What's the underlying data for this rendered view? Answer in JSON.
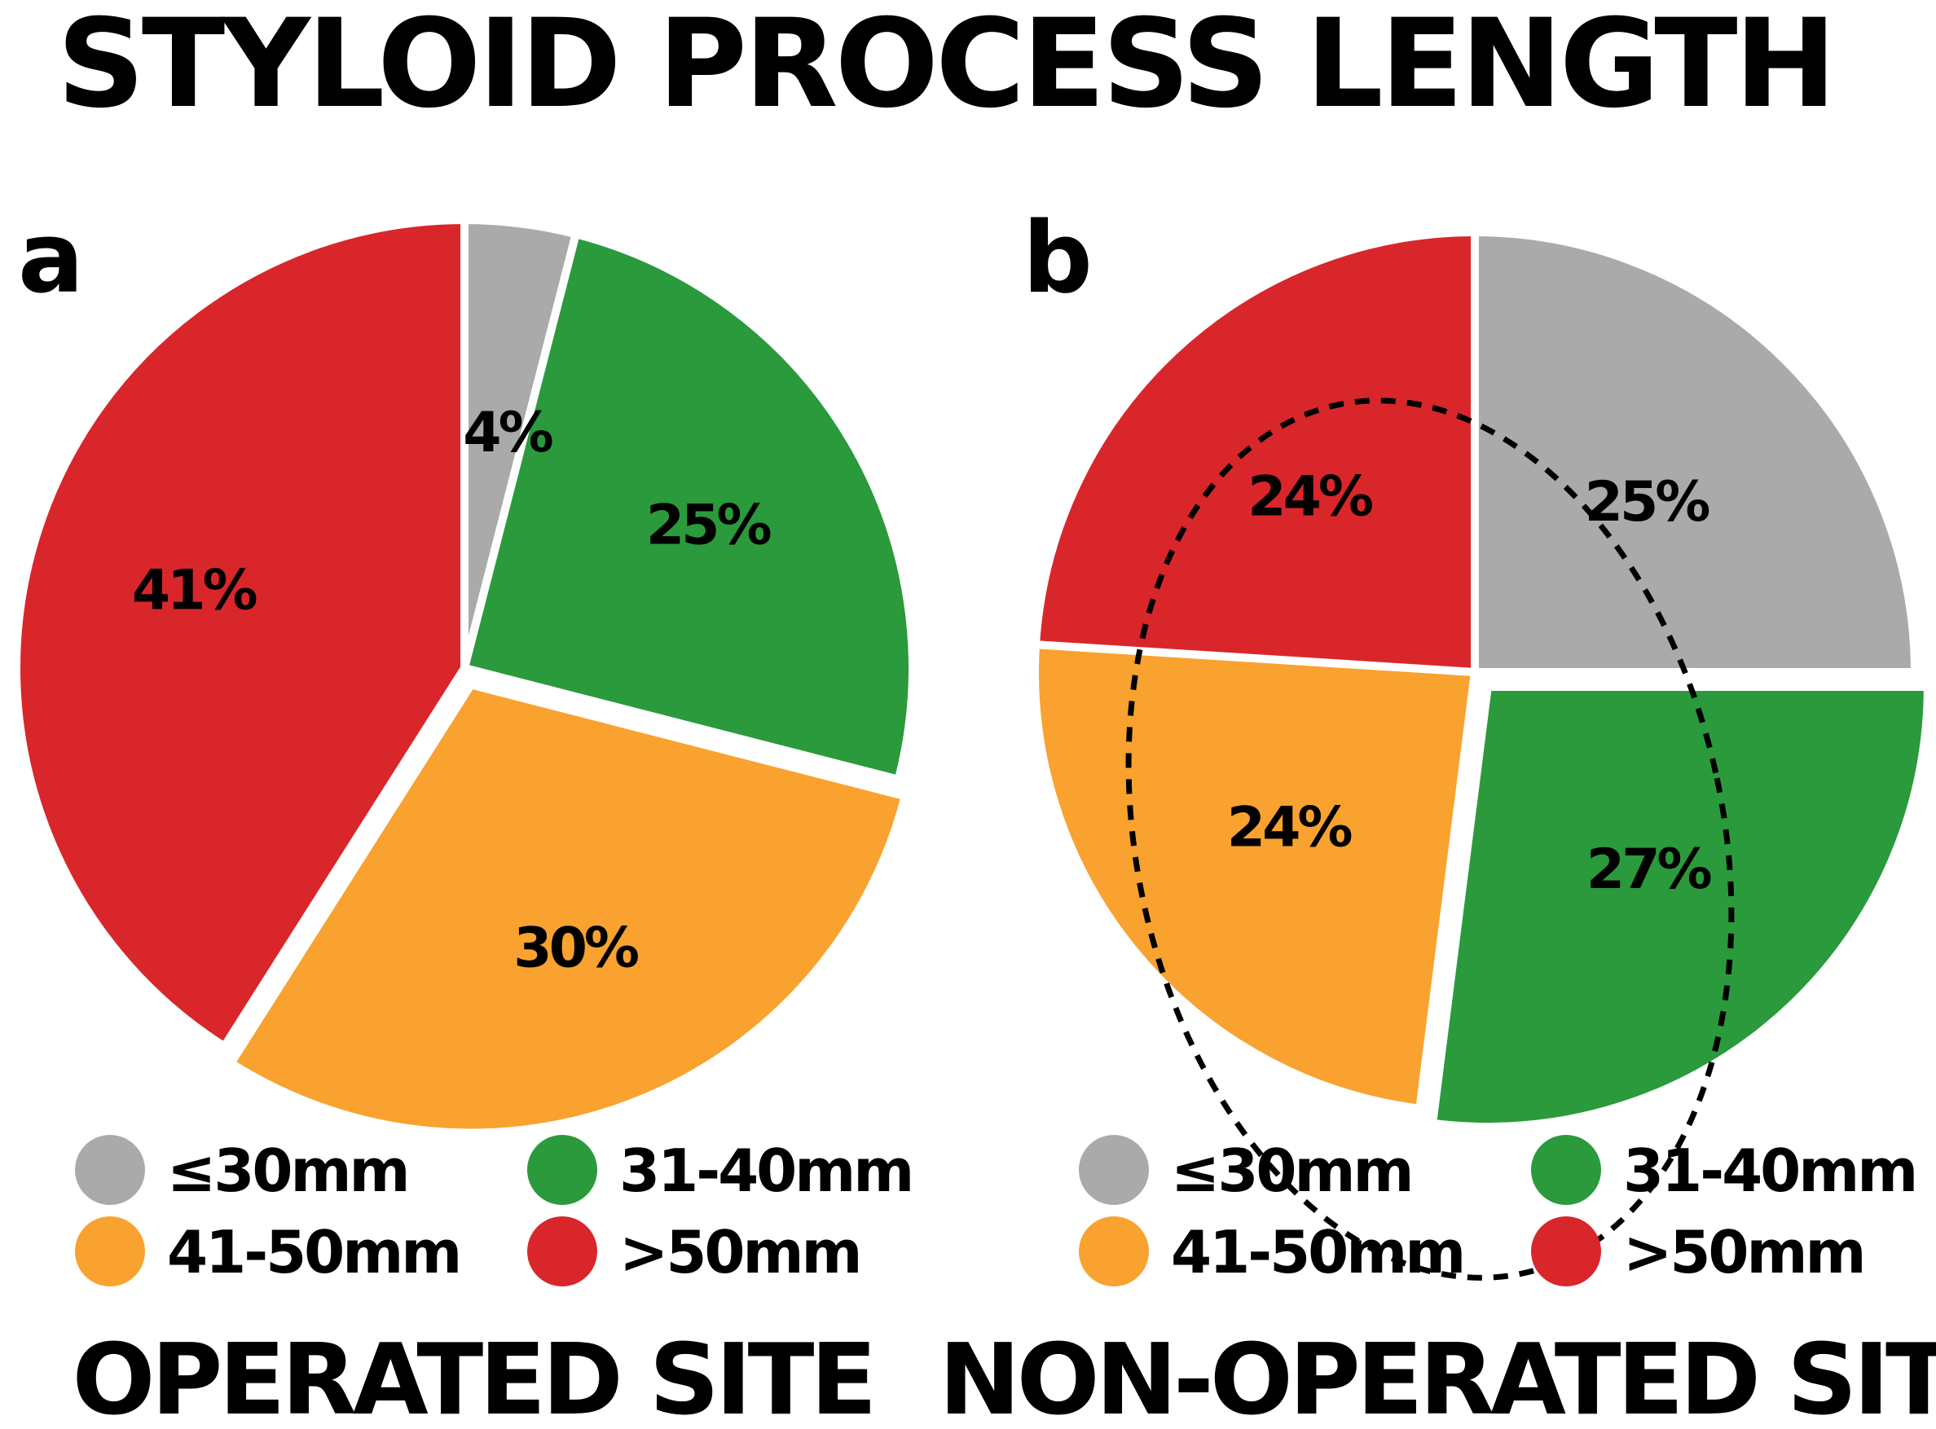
{
  "title": "STYLOID PROCESS LENGTH",
  "colors": {
    "le30": "#aaaaaa",
    "31_40": "#2a9a3c",
    "41_50": "#f9a22f",
    "gt50": "#d9262b",
    "highlight_ring": "#000000"
  },
  "chart_data": [
    {
      "type": "pie",
      "panel": "a",
      "site_label": "OPERATED SITE",
      "start_angle_deg": 0,
      "direction": "clockwise",
      "exploded_category": "41-50mm",
      "slices": [
        {
          "label": "≤30mm",
          "value": 4,
          "value_label": "4%",
          "color_key": "le30"
        },
        {
          "label": "31-40mm",
          "value": 25,
          "value_label": "25%",
          "color_key": "31_40"
        },
        {
          "label": "41-50mm",
          "value": 30,
          "value_label": "30%",
          "color_key": "41_50"
        },
        {
          "label": ">50mm",
          "value": 41,
          "value_label": "41%",
          "color_key": "gt50"
        }
      ],
      "legend": [
        "≤30mm",
        "31-40mm",
        "41-50mm",
        ">50mm"
      ],
      "legend_placement": "bottom"
    },
    {
      "type": "pie",
      "panel": "b",
      "site_label": "NON-OPERATED SITE",
      "start_angle_deg": 0,
      "direction": "clockwise",
      "exploded_category": "31-40mm",
      "dashed_highlight": "ellipse outline",
      "slices": [
        {
          "label": "≤30mm",
          "value": 25,
          "value_label": "25%",
          "color_key": "le30"
        },
        {
          "label": "31-40mm",
          "value": 27,
          "value_label": "27%",
          "color_key": "31_40"
        },
        {
          "label": "41-50mm",
          "value": 24,
          "value_label": "24%",
          "color_key": "41_50"
        },
        {
          "label": ">50mm",
          "value": 24,
          "value_label": "24%",
          "color_key": "gt50"
        }
      ],
      "legend": [
        "≤30mm",
        "31-40mm",
        "41-50mm",
        ">50mm"
      ],
      "legend_placement": "bottom"
    }
  ]
}
